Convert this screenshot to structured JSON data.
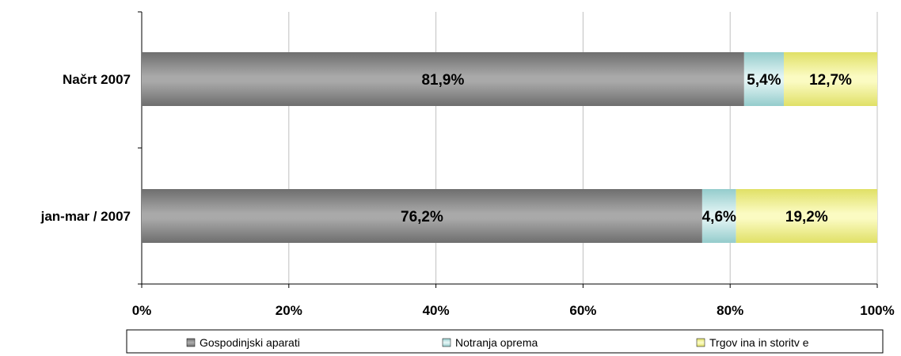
{
  "chart_data": {
    "type": "bar",
    "orientation": "horizontal",
    "stacked": "percent",
    "categories": [
      "Načrt 2007",
      "jan-mar / 2007"
    ],
    "series": [
      {
        "name": "Gospodinjski aparati",
        "values": [
          81.9,
          76.2
        ],
        "labels": [
          "81,9%",
          "76,2%"
        ],
        "color": "#8c8c8c"
      },
      {
        "name": "Notranja oprema",
        "values": [
          5.4,
          4.6
        ],
        "labels": [
          "5,4%",
          "4,6%"
        ],
        "color": "#b4dede"
      },
      {
        "name": "Trgov ina in storitv e",
        "values": [
          12.7,
          19.2
        ],
        "labels": [
          "12,7%",
          "19,2%"
        ],
        "color": "#f2f28e"
      }
    ],
    "x_ticks": [
      0,
      20,
      40,
      60,
      80,
      100
    ],
    "x_tick_labels": [
      "0%",
      "20%",
      "40%",
      "60%",
      "80%",
      "100%"
    ],
    "xlim": [
      0,
      100
    ],
    "grid": true,
    "legend": "bottom"
  }
}
